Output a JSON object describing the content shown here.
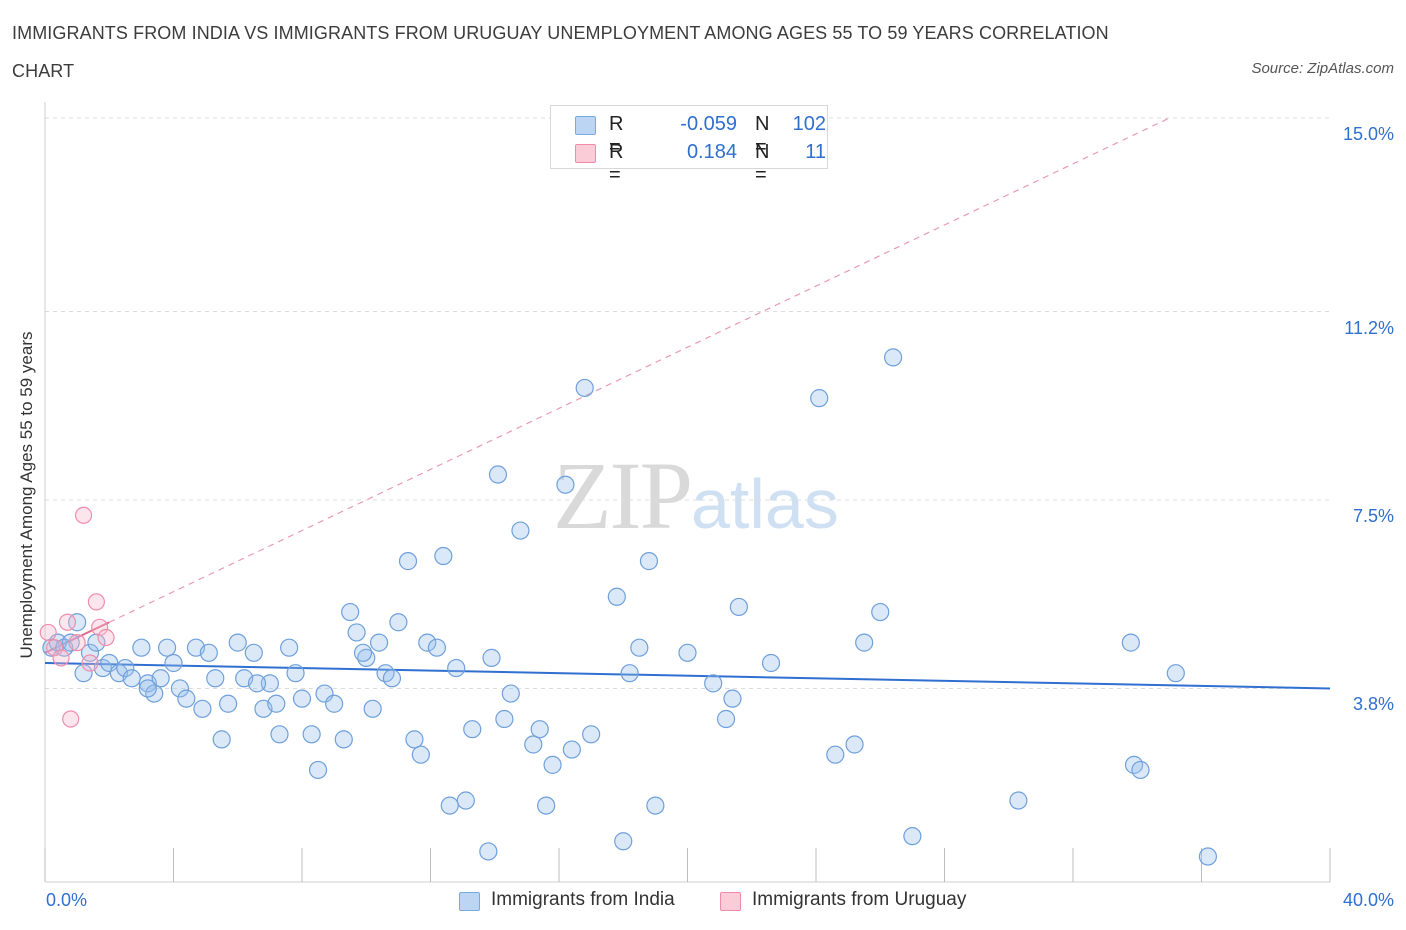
{
  "title": "IMMIGRANTS FROM INDIA VS IMMIGRANTS FROM URUGUAY UNEMPLOYMENT AMONG AGES 55 TO 59 YEARS CORRELATION CHART",
  "source": "Source: ZipAtlas.com",
  "watermark": {
    "zip": "ZIP",
    "atlas": "atlas"
  },
  "legend": {
    "series1": {
      "r_label": "R =",
      "r_value": "-0.059",
      "n_label": "N =",
      "n_value": "102",
      "color": "#a9c8ef"
    },
    "series2": {
      "r_label": "R =",
      "r_value": "0.184",
      "n_label": "N =",
      "n_value": "11",
      "color": "#f5b8c8"
    }
  },
  "bottom_legend": {
    "india": "Immigrants from India",
    "uruguay": "Immigrants from Uruguay"
  },
  "chart_data": {
    "type": "scatter",
    "title": "IMMIGRANTS FROM INDIA VS IMMIGRANTS FROM URUGUAY UNEMPLOYMENT AMONG AGES 55 TO 59 YEARS CORRELATION CHART",
    "xlabel": "",
    "ylabel": "Unemployment Among Ages 55 to 59 years",
    "xlim": [
      0,
      40
    ],
    "ylim": [
      0,
      15
    ],
    "x_tick_labels": [
      "0.0%",
      "40.0%"
    ],
    "y_ticks": [
      3.8,
      7.5,
      11.2,
      15.0
    ],
    "y_tick_labels": [
      "3.8%",
      "7.5%",
      "11.2%",
      "15.0%"
    ],
    "grid": true,
    "series": [
      {
        "name": "Immigrants from India",
        "color": "#7aa9e0",
        "trend": {
          "x": [
            0,
            40
          ],
          "y": [
            4.3,
            3.8
          ]
        },
        "points": [
          [
            0.2,
            4.6
          ],
          [
            0.4,
            4.7
          ],
          [
            0.6,
            4.6
          ],
          [
            0.8,
            4.7
          ],
          [
            1.0,
            5.1
          ],
          [
            1.2,
            4.1
          ],
          [
            1.4,
            4.5
          ],
          [
            1.6,
            4.7
          ],
          [
            1.8,
            4.2
          ],
          [
            2.0,
            4.3
          ],
          [
            2.3,
            4.1
          ],
          [
            2.5,
            4.2
          ],
          [
            2.7,
            4.0
          ],
          [
            3.0,
            4.6
          ],
          [
            3.2,
            3.9
          ],
          [
            3.4,
            3.7
          ],
          [
            3.6,
            4.0
          ],
          [
            3.8,
            4.6
          ],
          [
            4.0,
            4.3
          ],
          [
            4.2,
            3.8
          ],
          [
            4.4,
            3.6
          ],
          [
            4.7,
            4.6
          ],
          [
            4.9,
            3.4
          ],
          [
            5.1,
            4.5
          ],
          [
            5.3,
            4.0
          ],
          [
            5.5,
            2.8
          ],
          [
            5.7,
            3.5
          ],
          [
            6.0,
            4.7
          ],
          [
            6.2,
            4.0
          ],
          [
            6.5,
            4.5
          ],
          [
            6.8,
            3.4
          ],
          [
            7.0,
            3.9
          ],
          [
            7.3,
            2.9
          ],
          [
            7.6,
            4.6
          ],
          [
            7.8,
            4.1
          ],
          [
            8.0,
            3.6
          ],
          [
            8.3,
            2.9
          ],
          [
            8.5,
            2.2
          ],
          [
            8.7,
            3.7
          ],
          [
            9.0,
            3.5
          ],
          [
            9.3,
            2.8
          ],
          [
            9.5,
            5.3
          ],
          [
            9.7,
            4.9
          ],
          [
            10.0,
            4.4
          ],
          [
            10.2,
            3.4
          ],
          [
            10.4,
            4.7
          ],
          [
            10.6,
            4.1
          ],
          [
            10.8,
            4.0
          ],
          [
            11.0,
            5.1
          ],
          [
            11.3,
            6.3
          ],
          [
            11.5,
            2.8
          ],
          [
            11.7,
            2.5
          ],
          [
            11.9,
            4.7
          ],
          [
            12.2,
            4.6
          ],
          [
            12.4,
            6.4
          ],
          [
            12.6,
            1.5
          ],
          [
            12.8,
            4.2
          ],
          [
            13.1,
            1.6
          ],
          [
            13.3,
            3.0
          ],
          [
            13.8,
            0.6
          ],
          [
            13.9,
            4.4
          ],
          [
            14.1,
            8.0
          ],
          [
            14.3,
            3.2
          ],
          [
            14.5,
            3.7
          ],
          [
            14.8,
            6.9
          ],
          [
            15.2,
            2.7
          ],
          [
            15.4,
            3.0
          ],
          [
            15.6,
            1.5
          ],
          [
            15.8,
            2.3
          ],
          [
            16.2,
            7.8
          ],
          [
            16.4,
            2.6
          ],
          [
            16.8,
            9.7
          ],
          [
            17.0,
            2.9
          ],
          [
            17.8,
            5.6
          ],
          [
            18.0,
            0.8
          ],
          [
            18.2,
            4.1
          ],
          [
            18.5,
            4.6
          ],
          [
            18.8,
            6.3
          ],
          [
            19.0,
            1.5
          ],
          [
            20.0,
            4.5
          ],
          [
            20.8,
            3.9
          ],
          [
            21.2,
            3.2
          ],
          [
            21.4,
            3.6
          ],
          [
            21.6,
            5.4
          ],
          [
            22.6,
            4.3
          ],
          [
            24.1,
            9.5
          ],
          [
            24.6,
            2.5
          ],
          [
            25.2,
            2.7
          ],
          [
            25.5,
            4.7
          ],
          [
            26.0,
            5.3
          ],
          [
            26.4,
            10.3
          ],
          [
            27.0,
            0.9
          ],
          [
            30.3,
            1.6
          ],
          [
            33.8,
            4.7
          ],
          [
            33.9,
            2.3
          ],
          [
            34.1,
            2.2
          ],
          [
            35.2,
            4.1
          ],
          [
            36.2,
            0.5
          ],
          [
            7.2,
            3.5
          ],
          [
            6.6,
            3.9
          ],
          [
            9.9,
            4.5
          ],
          [
            3.2,
            3.8
          ]
        ]
      },
      {
        "name": "Immigrants from Uruguay",
        "color": "#f08aa8",
        "trend": {
          "x": [
            0,
            35
          ],
          "y": [
            4.5,
            15.0
          ]
        },
        "points": [
          [
            0.1,
            4.9
          ],
          [
            0.3,
            4.6
          ],
          [
            0.5,
            4.4
          ],
          [
            0.7,
            5.1
          ],
          [
            0.8,
            3.2
          ],
          [
            1.0,
            4.7
          ],
          [
            1.2,
            7.2
          ],
          [
            1.4,
            4.3
          ],
          [
            1.6,
            5.5
          ],
          [
            1.7,
            5.0
          ],
          [
            1.9,
            4.8
          ]
        ]
      }
    ]
  }
}
